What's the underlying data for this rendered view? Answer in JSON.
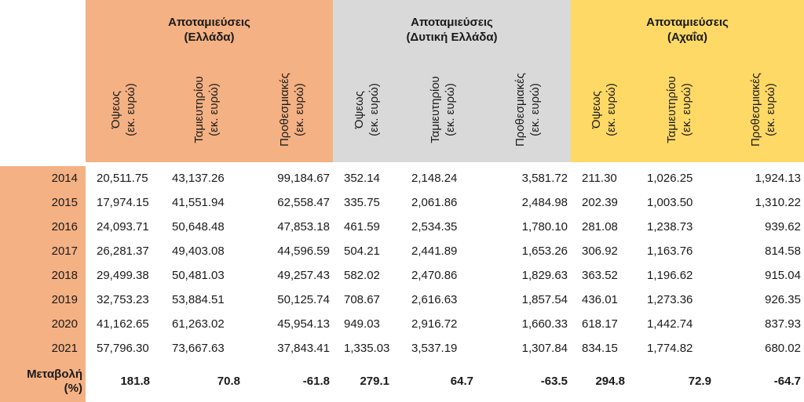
{
  "colors": {
    "greece": "#f4b183",
    "west": "#d9d9d9",
    "achaia": "#ffd966"
  },
  "groups": [
    {
      "line1": "Αποταμιεύσεις",
      "line2": "(Ελλάδα)"
    },
    {
      "line1": "Αποταμιεύσεις",
      "line2": "(Δυτική Ελλάδα)"
    },
    {
      "line1": "Αποταμιεύσεις",
      "line2": "(Αχαΐα)"
    }
  ],
  "subheaders": [
    {
      "line1": "Όψεως",
      "line2": "(εκ. ευρώ)"
    },
    {
      "line1": "Ταμιευτηρίου",
      "line2": "(εκ. ευρώ)"
    },
    {
      "line1": "Προθεσμιακές",
      "line2": "(εκ. ευρώ)"
    }
  ],
  "rows": [
    {
      "year": "2014",
      "values": [
        "20,511.75",
        "43,137.26",
        "99,184.67",
        "352.14",
        "2,148.24",
        "3,581.72",
        "211.30",
        "1,026.25",
        "1,924.13"
      ]
    },
    {
      "year": "2015",
      "values": [
        "17,974.15",
        "41,551.94",
        "62,558.47",
        "335.75",
        "2,061.86",
        "2,484.98",
        "202.39",
        "1,003.50",
        "1,310.22"
      ]
    },
    {
      "year": "2016",
      "values": [
        "24,093.71",
        "50,648.48",
        "47,853.18",
        "461.59",
        "2,534.35",
        "1,780.10",
        "281.08",
        "1,238.73",
        "939.62"
      ]
    },
    {
      "year": "2017",
      "values": [
        "26,281.37",
        "49,403.08",
        "44,596.59",
        "504.21",
        "2,441.89",
        "1,653.26",
        "306.92",
        "1,163.76",
        "814.58"
      ]
    },
    {
      "year": "2018",
      "values": [
        "29,499.38",
        "50,481.03",
        "49,257.43",
        "582.02",
        "2,470.86",
        "1,829.63",
        "363.52",
        "1,196.62",
        "915.04"
      ]
    },
    {
      "year": "2019",
      "values": [
        "32,753.23",
        "53,884.51",
        "50,125.74",
        "708.67",
        "2,616.63",
        "1,857.54",
        "436.01",
        "1,273.36",
        "926.35"
      ]
    },
    {
      "year": "2020",
      "values": [
        "41,162.65",
        "61,263.02",
        "45,954.13",
        "949.03",
        "2,916.72",
        "1,660.33",
        "618.17",
        "1,442.74",
        "837.93"
      ]
    },
    {
      "year": "2021",
      "values": [
        "57,796.30",
        "73,667.63",
        "37,843.41",
        "1,335.03",
        "3,537.19",
        "1,307.84",
        "834.15",
        "1,774.82",
        "680.02"
      ]
    }
  ],
  "change": {
    "label_line1": "Μεταβολή",
    "label_line2": "(%)",
    "values": [
      "181.8",
      "70.8",
      "-61.8",
      "279.1",
      "64.7",
      "-63.5",
      "294.8",
      "72.9",
      "-64.7"
    ]
  }
}
